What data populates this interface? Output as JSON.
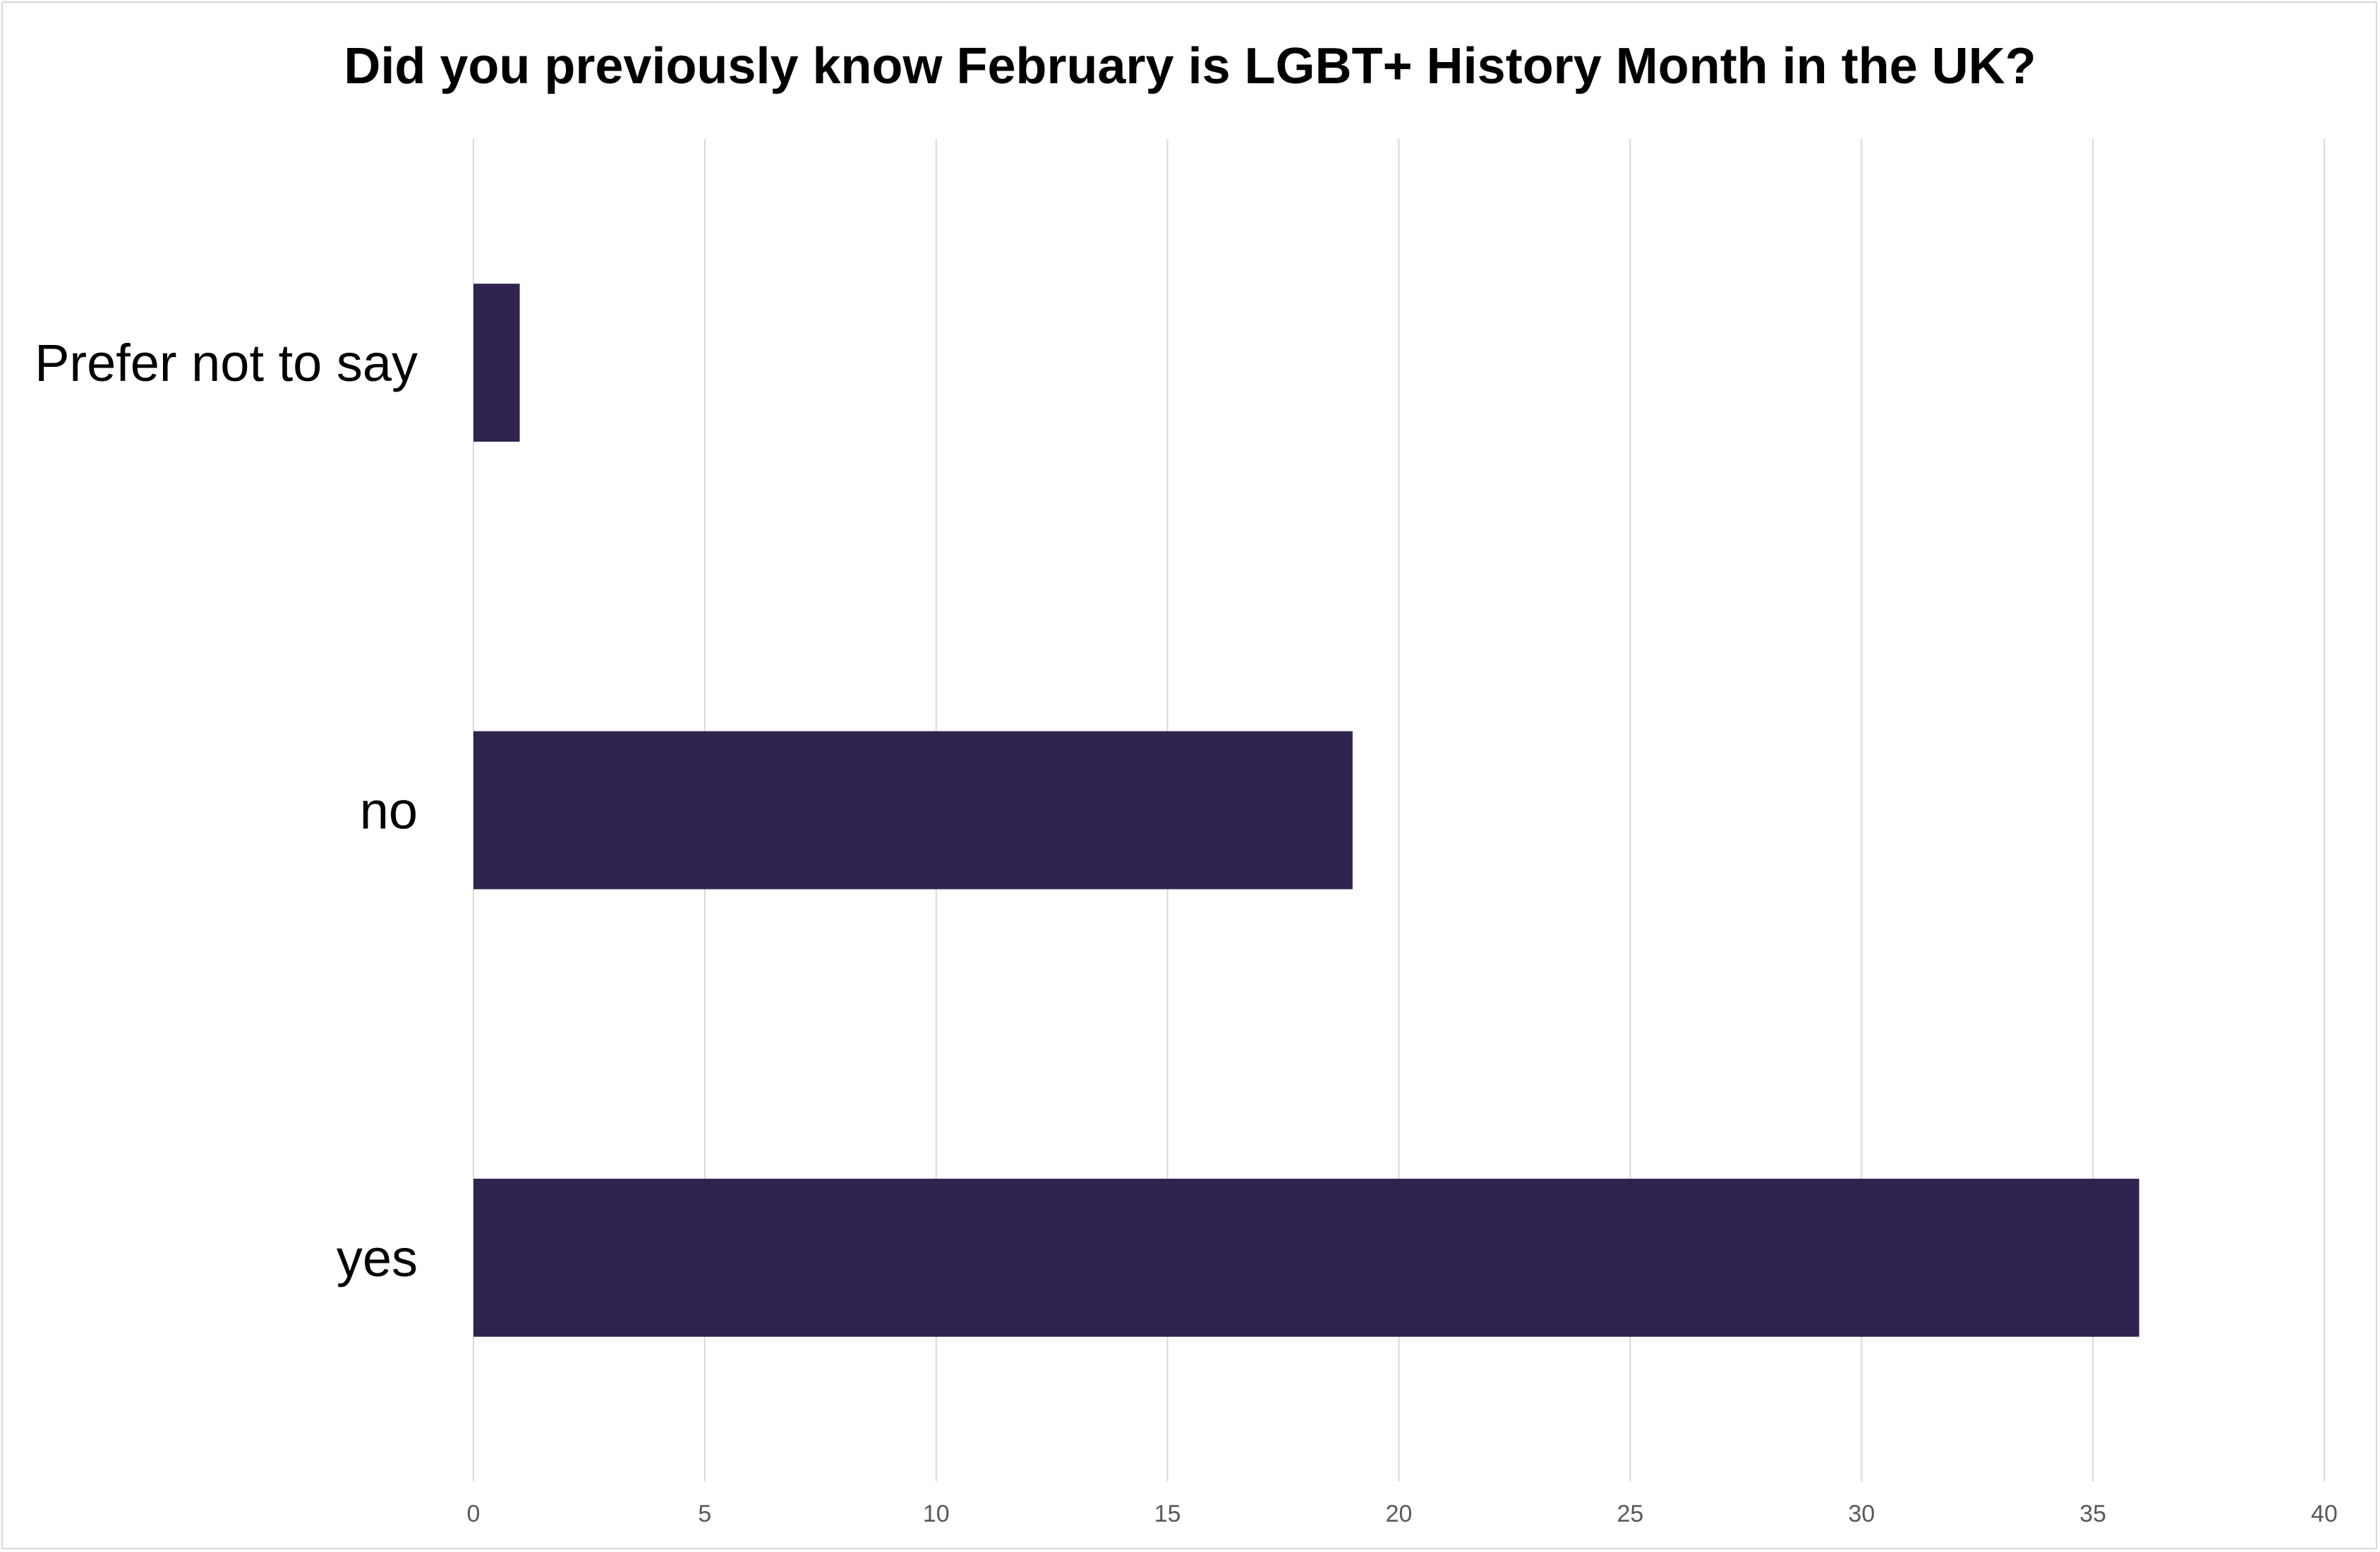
{
  "chart_data": {
    "type": "bar",
    "orientation": "horizontal",
    "title": "Did you previously know February is LGBT+ History Month in the UK?",
    "categories": [
      "Prefer not to say",
      "no",
      "yes"
    ],
    "values": [
      1,
      19,
      36
    ],
    "xlim": [
      0,
      40
    ],
    "x_ticks": [
      0,
      5,
      10,
      15,
      20,
      25,
      30,
      35,
      40
    ],
    "xlabel": "",
    "ylabel": "",
    "grid": "vertical",
    "legend": "none",
    "bar_color": "#30234f"
  }
}
